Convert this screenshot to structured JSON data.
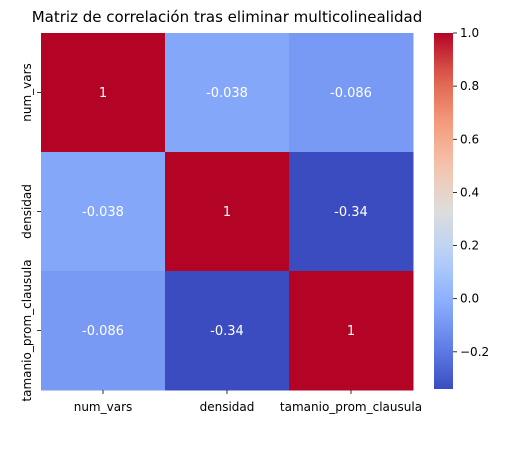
{
  "chart_data": {
    "type": "heatmap",
    "title": "Matriz de correlación tras eliminar multicolinealidad",
    "xlabel": "",
    "ylabel": "",
    "rows": [
      "num_vars",
      "densidad",
      "tamanio_prom_clausula"
    ],
    "cols": [
      "num_vars",
      "densidad",
      "tamanio_prom_clausula"
    ],
    "values": [
      [
        1,
        -0.038,
        -0.086
      ],
      [
        -0.038,
        1,
        -0.34
      ],
      [
        -0.086,
        -0.34,
        1
      ]
    ],
    "annotations": [
      [
        "1",
        "-0.038",
        "-0.086"
      ],
      [
        "-0.038",
        "1",
        "-0.34"
      ],
      [
        "-0.086",
        "-0.34",
        "1"
      ]
    ],
    "colormap": "coolwarm",
    "colorbar": {
      "range": [
        -0.34,
        1.0
      ],
      "ticks": [
        -0.2,
        0.0,
        0.2,
        0.4,
        0.6,
        0.8,
        1.0
      ],
      "tick_labels": [
        "−0.2",
        "0.0",
        "0.2",
        "0.4",
        "0.6",
        "0.8",
        "1.0"
      ]
    },
    "annotation_color": "#ffffff"
  }
}
